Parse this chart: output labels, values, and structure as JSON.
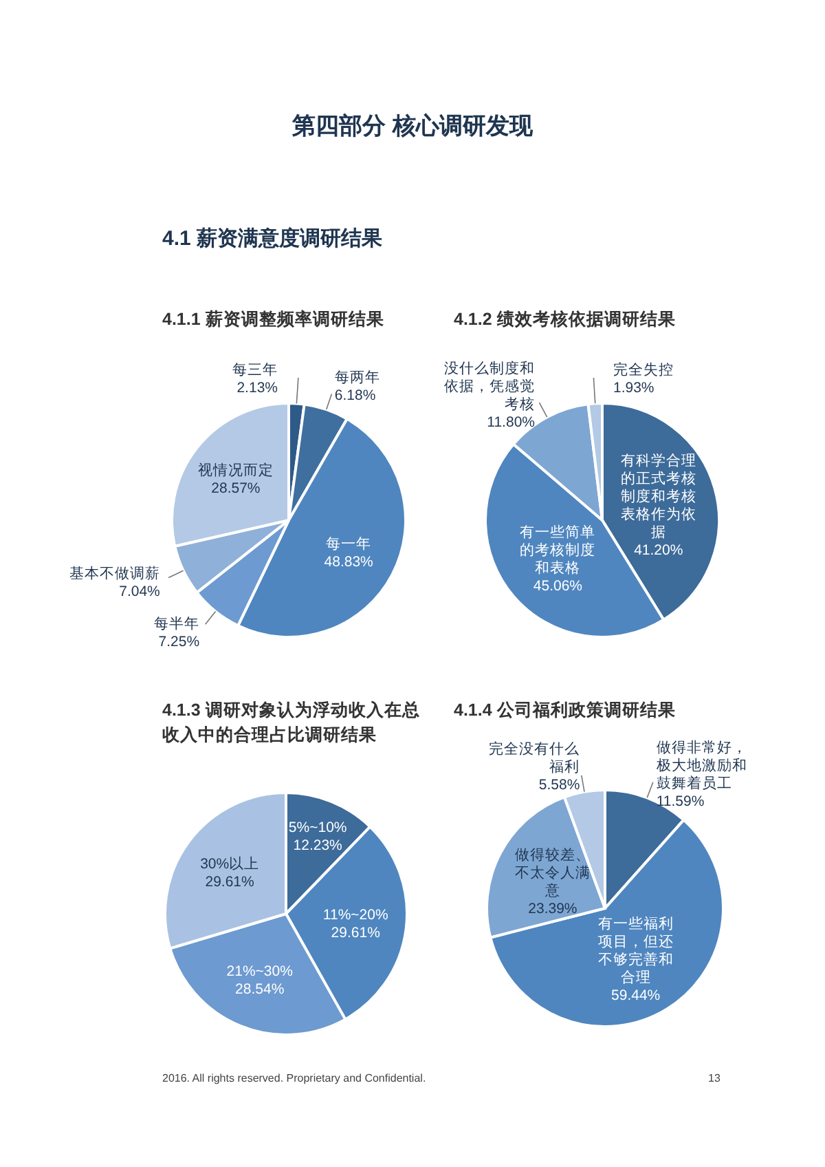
{
  "chart_data": [
    {
      "type": "pie",
      "title": "4.1.1 薪资调整频率调研结果",
      "annotations": [
        "第四部分  核心调研发现",
        "4.1 薪资满意度调研结果"
      ],
      "categories": [
        "每三年",
        "每两年",
        "每一年",
        "每半年",
        "基本不做调薪",
        "视情况而定"
      ],
      "values": [
        2.13,
        6.18,
        48.83,
        7.25,
        7.04,
        28.57
      ],
      "value_labels": [
        "2.13%",
        "6.18%",
        "48.83%",
        "7.25%",
        "7.04%",
        "28.57%"
      ],
      "colors": [
        "#2e5a87",
        "#3f6f9f",
        "#4f86bf",
        "#6d9ad0",
        "#8fb0d8",
        "#b3c9e6"
      ]
    },
    {
      "type": "pie",
      "title": "4.1.2 绩效考核依据调研结果",
      "categories": [
        "有科学合理的正式考核制度和考核表格作为依据",
        "有一些简单的考核制度和表格",
        "没什么制度和依据，凭感觉考核",
        "完全失控"
      ],
      "values": [
        41.2,
        45.06,
        11.8,
        1.93
      ],
      "value_labels": [
        "41.20%",
        "45.06%",
        "11.80%",
        "1.93%"
      ],
      "colors": [
        "#3d6b9a",
        "#4f86bf",
        "#7ea6d3",
        "#b3c9e6"
      ]
    },
    {
      "type": "pie",
      "title": "4.1.3 调研对象认为浮动收入在总收入中的合理占比调研结果",
      "categories": [
        "5%~10%",
        "11%~20%",
        "21%~30%",
        "30%以上"
      ],
      "values": [
        12.23,
        29.61,
        28.54,
        29.61
      ],
      "value_labels": [
        "12.23%",
        "29.61%",
        "28.54%",
        "29.61%"
      ],
      "colors": [
        "#3d6b9a",
        "#4f86bf",
        "#6d9ad0",
        "#a9c2e3"
      ]
    },
    {
      "type": "pie",
      "title": "4.1.4 公司福利政策调研结果",
      "annotations": [
        "2016. All rights reserved. Proprietary and Confidential.",
        "13"
      ],
      "categories": [
        "做得非常好，极大地激励和鼓舞着员工",
        "有一些福利项目，但还不够完善和合理",
        "做得较差、不太令人满意",
        "完全没有什么福利"
      ],
      "values": [
        11.59,
        59.44,
        23.39,
        5.58
      ],
      "value_labels": [
        "11.59%",
        "59.44%",
        "23.39%",
        "5.58%"
      ],
      "colors": [
        "#3d6b9a",
        "#4f86bf",
        "#7ea6d3",
        "#b3c9e6"
      ]
    }
  ]
}
